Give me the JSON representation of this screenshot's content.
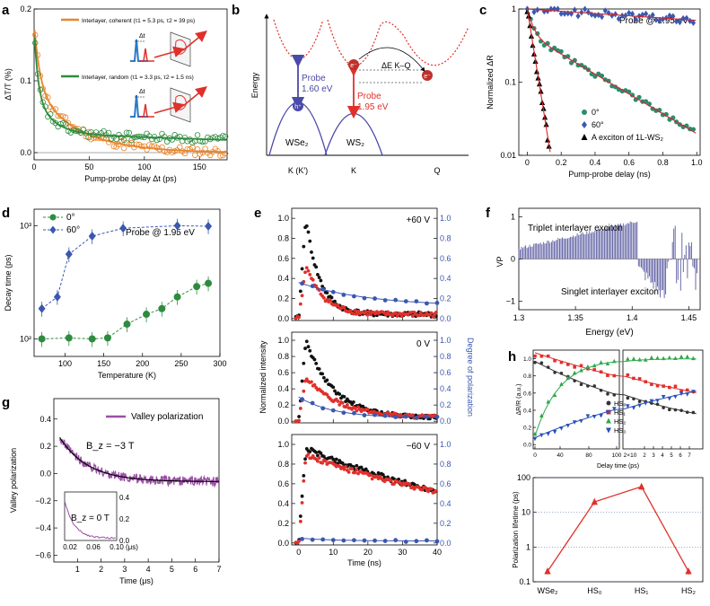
{
  "panel_labels": [
    "a",
    "b",
    "c",
    "d",
    "e",
    "f",
    "g",
    "h"
  ],
  "chart_data": [
    {
      "panel": "a",
      "type": "scatter",
      "ylabel": "ΔT/T (%)",
      "xlabel": "Pump-probe delay Δt (ps)",
      "xlim": [
        0,
        175
      ],
      "ylim": [
        -0.01,
        0.2
      ],
      "x_ticks": [
        "0",
        "50",
        "100",
        "150"
      ],
      "y_ticks": [
        "0.0",
        "0.1",
        "0.2"
      ],
      "legend_placement": "top-right",
      "inset_label": "Δt",
      "series": [
        {
          "name": "Interlayer, coherent (τ1 = 5.3 ps, τ2 = 39 ps)",
          "color": "#e8852c",
          "tau1": 5.3,
          "tau2": 39,
          "amp1": 0.09,
          "amp2": 0.09,
          "offset": 0.0
        },
        {
          "name": "Interlayer, random (τ1 = 3.3 ps, τ2 = 1.5 ns)",
          "color": "#2e8b3e",
          "tau1": 3.3,
          "tau2": 1500,
          "amp1": 0.09,
          "amp2": 0.085,
          "offset": -0.058
        }
      ]
    },
    {
      "panel": "b",
      "type": "diagram",
      "ylabel": "Energy",
      "x_ticks": [
        "K (K′)",
        "K",
        "Q"
      ],
      "labels": {
        "wse2": "WSe₂",
        "ws2": "WS₂",
        "probe1": "Probe\n1.60 eV",
        "probe2": "Probe\n1.95 eV",
        "dE": "ΔE K–Q",
        "hole": "h⁺",
        "electron": "e⁻"
      }
    },
    {
      "panel": "c",
      "type": "scatter",
      "ylabel": "Normalized ΔR",
      "xlabel": "Pump-probe delay (ns)",
      "yscale": "log",
      "xlim": [
        -0.05,
        1.02
      ],
      "ylim": [
        0.01,
        1
      ],
      "x_ticks": [
        "0",
        "0.2",
        "0.4",
        "0.6",
        "0.8",
        "1.0"
      ],
      "y_ticks": [
        "0.01",
        "0.1",
        "1"
      ],
      "annotation": "Probe @ 1.95 eV",
      "legend_placement": "bottom-left",
      "series": [
        {
          "name": "0°",
          "marker": "circle",
          "color": "#2e8b6e",
          "tau": 0.19,
          "fit_color": "#d62728"
        },
        {
          "name": "60°",
          "marker": "diamond",
          "color": "#3a58b0",
          "tau": 2.8,
          "fit_color": "#d62728"
        },
        {
          "name": "A exciton of 1L-WS₂",
          "marker": "triangle",
          "color": "#000000",
          "tau": 0.03,
          "fit_color": "#d62728"
        }
      ]
    },
    {
      "panel": "d",
      "type": "scatter",
      "ylabel": "Decay time (ps)",
      "xlabel": "Temperature (K)",
      "yscale": "log",
      "xlim": [
        60,
        300
      ],
      "ylim": [
        70,
        1400
      ],
      "x_ticks": [
        "100",
        "150",
        "200",
        "250",
        "300"
      ],
      "y_ticks": [
        "10²",
        "10³"
      ],
      "annotation": "Probe @ 1.95 eV",
      "legend_placement": "top-left",
      "series": [
        {
          "name": "0°",
          "marker": "circle",
          "color": "#2e8b3e",
          "x": [
            70,
            105,
            135,
            155,
            180,
            205,
            225,
            245,
            270,
            285
          ],
          "y": [
            100,
            102,
            100,
            102,
            135,
            165,
            185,
            235,
            290,
            310
          ]
        },
        {
          "name": "60°",
          "marker": "diamond",
          "color": "#3a58b0",
          "x": [
            70,
            90,
            105,
            135,
            175,
            245,
            285
          ],
          "y": [
            185,
            235,
            560,
            810,
            950,
            1000,
            990
          ]
        }
      ]
    },
    {
      "panel": "e",
      "type": "scatter",
      "ylabel_left": "Normalized intensity",
      "ylabel_right": "Degree of polarization",
      "xlabel": "Time (ns)",
      "xlim": [
        -2,
        40
      ],
      "x_ticks": [
        "0",
        "10",
        "20",
        "30",
        "40"
      ],
      "left_ticks": [
        "0.0",
        "0.2",
        "0.4",
        "0.6",
        "0.8",
        "1.0"
      ],
      "right_ticks": [
        "0.0",
        "0.2",
        "0.4",
        "0.6",
        "0.8",
        "1.0"
      ],
      "subpanels": [
        {
          "label": "+60 V",
          "black_peak": 0.98,
          "black_tau": 4.0,
          "red_peak": 0.5,
          "red_tau": 5.0,
          "dop_start": 0.36,
          "dop_end": 0.12,
          "dop_tau": 20
        },
        {
          "label": "0 V",
          "black_peak": 0.97,
          "black_tau": 8.0,
          "red_peak": 0.5,
          "red_tau": 10.0,
          "dop_start": 0.3,
          "dop_end": 0.04,
          "dop_tau": 10
        },
        {
          "label": "−60 V",
          "black_peak": 0.92,
          "black_tau": 60.0,
          "red_peak": 0.85,
          "red_tau": 65.0,
          "dop_start": 0.05,
          "dop_end": 0.02,
          "dop_tau": 10
        }
      ]
    },
    {
      "panel": "f",
      "type": "bar",
      "ylabel": "VP",
      "xlabel": "Energy (eV)",
      "xlim": [
        1.3,
        1.46
      ],
      "ylim": [
        -1.2,
        1.2
      ],
      "x_ticks": [
        "1.3",
        "1.35",
        "1.4",
        "1.45"
      ],
      "y_ticks": [
        "−1",
        "0",
        "1"
      ],
      "color": "#5a5aa0",
      "annotations": [
        "Triplet interlayer exciton",
        "Singlet interlayer exciton"
      ]
    },
    {
      "panel": "g",
      "type": "line",
      "ylabel": "Valley polarization",
      "xlabel": "Time (μs)",
      "xlim": [
        0,
        7
      ],
      "ylim": [
        -0.65,
        0.55
      ],
      "x_ticks": [
        "1",
        "2",
        "3",
        "4",
        "5",
        "6",
        "7"
      ],
      "y_ticks": [
        "−0.6",
        "−0.4",
        "−0.2",
        "0.0",
        "0.2",
        "0.4"
      ],
      "legend": "Valley polarization",
      "color": "#9b4fa6",
      "field_label": "B_z = −3 T",
      "fit": {
        "amp": 0.4,
        "tau": 1.2,
        "offset": -0.06
      },
      "inset": {
        "field_label": "B_z = 0 T",
        "xlabel": "(μs)",
        "x_ticks": [
          "0.02",
          "0.06",
          "0.10"
        ],
        "y_ticks": [
          "0.0",
          "0.2",
          "0.4"
        ]
      }
    },
    {
      "panel": "h_top",
      "type": "scatter",
      "ylabel": "ΔR/R (a.u.)",
      "xlabel": "Delay time (ps)",
      "x_ticks_left": [
        "0",
        "40",
        "80",
        "100"
      ],
      "x_ticks_right": [
        "2",
        "3",
        "4",
        "5",
        "6",
        "7"
      ],
      "right_prefix": "2×10",
      "y_ticks": [
        "0.0",
        "0.2",
        "0.4",
        "0.6",
        "0.8",
        "1.0"
      ],
      "series": [
        {
          "name": "HS₀",
          "marker": "circle",
          "color": "#333333"
        },
        {
          "name": "HS₁",
          "marker": "square",
          "color": "#e0302b"
        },
        {
          "name": "HS₂",
          "marker": "triangle",
          "color": "#2fa84a"
        },
        {
          "name": "HS₃",
          "marker": "triangle-down",
          "color": "#2a50b8"
        }
      ]
    },
    {
      "panel": "h_bottom",
      "type": "line",
      "ylabel": "Polarization lifetime (ps)",
      "yscale": "log",
      "categories": [
        "WSe₂",
        "HS₀",
        "HS₁",
        "HS₂"
      ],
      "values": [
        0.2,
        20,
        55,
        0.2
      ],
      "ylim": [
        0.1,
        100
      ],
      "y_ticks": [
        "0.1",
        "1",
        "10",
        "100"
      ],
      "color": "#e0302b"
    }
  ]
}
